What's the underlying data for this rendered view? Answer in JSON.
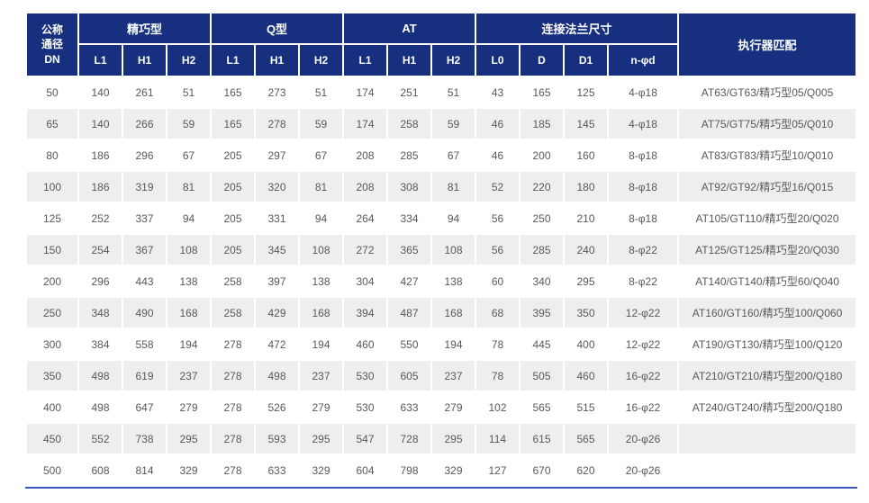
{
  "table": {
    "colors": {
      "header_bg": "#16307f",
      "header_text": "#ffffff",
      "stripe_bg": "#eeeeee",
      "body_text": "#595959",
      "bottom_line": "#3a57bd"
    },
    "header": {
      "dn": "公称\n通径\nDN",
      "groups": [
        {
          "label": "精巧型",
          "cols": [
            "L1",
            "H1",
            "H2"
          ]
        },
        {
          "label": "Q型",
          "cols": [
            "L1",
            "H1",
            "H2"
          ]
        },
        {
          "label": "AT",
          "cols": [
            "L1",
            "H1",
            "H2"
          ]
        },
        {
          "label": "连接法兰尺寸",
          "cols": [
            "L0",
            "D",
            "D1",
            "n-φd"
          ]
        }
      ],
      "actuator": "执行器匹配"
    },
    "rows": [
      [
        "50",
        "140",
        "261",
        "51",
        "165",
        "273",
        "51",
        "174",
        "251",
        "51",
        "43",
        "165",
        "125",
        "4-φ18",
        "AT63/GT63/精巧型05/Q005"
      ],
      [
        "65",
        "140",
        "266",
        "59",
        "165",
        "278",
        "59",
        "174",
        "258",
        "59",
        "46",
        "185",
        "145",
        "4-φ18",
        "AT75/GT75/精巧型05/Q010"
      ],
      [
        "80",
        "186",
        "296",
        "67",
        "205",
        "297",
        "67",
        "208",
        "285",
        "67",
        "46",
        "200",
        "160",
        "8-φ18",
        "AT83/GT83/精巧型10/Q010"
      ],
      [
        "100",
        "186",
        "319",
        "81",
        "205",
        "320",
        "81",
        "208",
        "308",
        "81",
        "52",
        "220",
        "180",
        "8-φ18",
        "AT92/GT92/精巧型16/Q015"
      ],
      [
        "125",
        "252",
        "337",
        "94",
        "205",
        "331",
        "94",
        "264",
        "334",
        "94",
        "56",
        "250",
        "210",
        "8-φ18",
        "AT105/GT110/精巧型20/Q020"
      ],
      [
        "150",
        "254",
        "367",
        "108",
        "205",
        "345",
        "108",
        "272",
        "365",
        "108",
        "56",
        "285",
        "240",
        "8-φ22",
        "AT125/GT125/精巧型20/Q030"
      ],
      [
        "200",
        "296",
        "443",
        "138",
        "258",
        "397",
        "138",
        "304",
        "427",
        "138",
        "60",
        "340",
        "295",
        "8-φ22",
        "AT140/GT140/精巧型60/Q040"
      ],
      [
        "250",
        "348",
        "490",
        "168",
        "258",
        "429",
        "168",
        "394",
        "487",
        "168",
        "68",
        "395",
        "350",
        "12-φ22",
        "AT160/GT160/精巧型100/Q060"
      ],
      [
        "300",
        "384",
        "558",
        "194",
        "278",
        "472",
        "194",
        "460",
        "550",
        "194",
        "78",
        "445",
        "400",
        "12-φ22",
        "AT190/GT130/精巧型100/Q120"
      ],
      [
        "350",
        "498",
        "619",
        "237",
        "278",
        "498",
        "237",
        "530",
        "605",
        "237",
        "78",
        "505",
        "460",
        "16-φ22",
        "AT210/GT210/精巧型200/Q180"
      ],
      [
        "400",
        "498",
        "647",
        "279",
        "278",
        "526",
        "279",
        "530",
        "633",
        "279",
        "102",
        "565",
        "515",
        "16-φ22",
        "AT240/GT240/精巧型200/Q180"
      ],
      [
        "450",
        "552",
        "738",
        "295",
        "278",
        "593",
        "295",
        "547",
        "728",
        "295",
        "114",
        "615",
        "565",
        "20-φ26",
        ""
      ],
      [
        "500",
        "608",
        "814",
        "329",
        "278",
        "633",
        "329",
        "604",
        "798",
        "329",
        "127",
        "670",
        "620",
        "20-φ26",
        ""
      ]
    ]
  }
}
